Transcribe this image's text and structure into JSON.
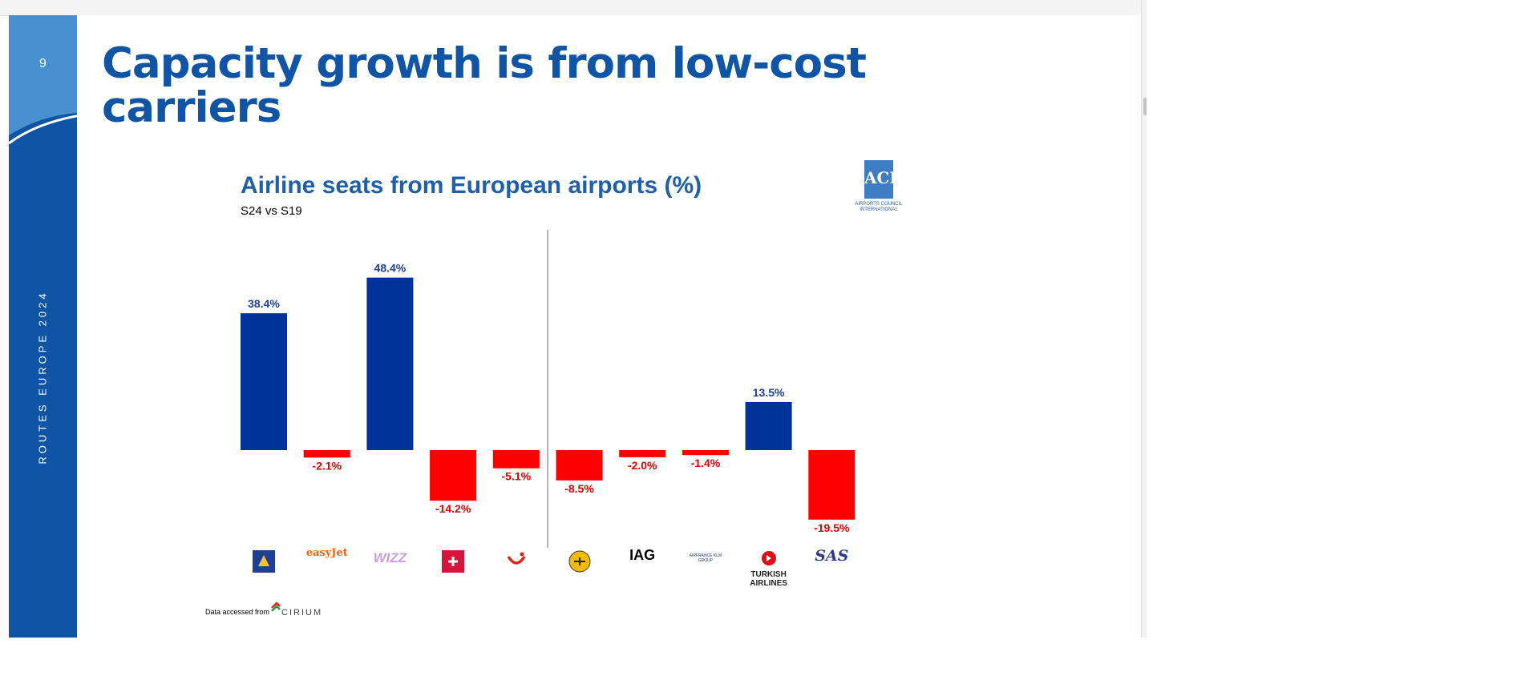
{
  "slide": {
    "page_number": "9",
    "vertical_label": "ROUTES EUROPE 2024",
    "title": "Capacity growth is from low-cost carriers",
    "footer_text": "Data accessed from",
    "footer_logo_text": "CIRIUM",
    "logo_caption": "AIRPORTS COUNCIL INTERNATIONAL",
    "logo_text": "ACI"
  },
  "colors": {
    "brand_blue": "#0f54a5",
    "positive_bar": "#003399",
    "negative_bar": "#ff0000",
    "positive_label": "#1f3f8f",
    "negative_label": "#e00000"
  },
  "chart_data": {
    "type": "bar",
    "title": "Airline seats from European airports (%)",
    "subtitle": "S24 vs S19",
    "categories": [
      "Ryanair",
      "easyJet",
      "Wizz",
      "Jet2",
      "TUI",
      "Lufthansa",
      "IAG",
      "Air France KLM",
      "Turkish Airlines",
      "SAS"
    ],
    "category_labels": [
      "",
      "easyJet",
      "WIZZ",
      "",
      "",
      "",
      "IAG",
      "AIRFRANCE KLM GROUP",
      "TURKISH AIRLINES",
      "SAS"
    ],
    "values": [
      38.4,
      -2.1,
      48.4,
      -14.2,
      -5.1,
      -8.5,
      -2.0,
      -1.4,
      13.5,
      -19.5
    ],
    "data_labels": [
      "38.4%",
      "-2.1%",
      "48.4%",
      "-14.2%",
      "-5.1%",
      "-8.5%",
      "-2.0%",
      "-1.4%",
      "13.5%",
      "-19.5%"
    ],
    "ylim": [
      -20,
      50
    ],
    "xlabel": "",
    "ylabel": "",
    "grid": false,
    "divider_after_index": 4
  }
}
